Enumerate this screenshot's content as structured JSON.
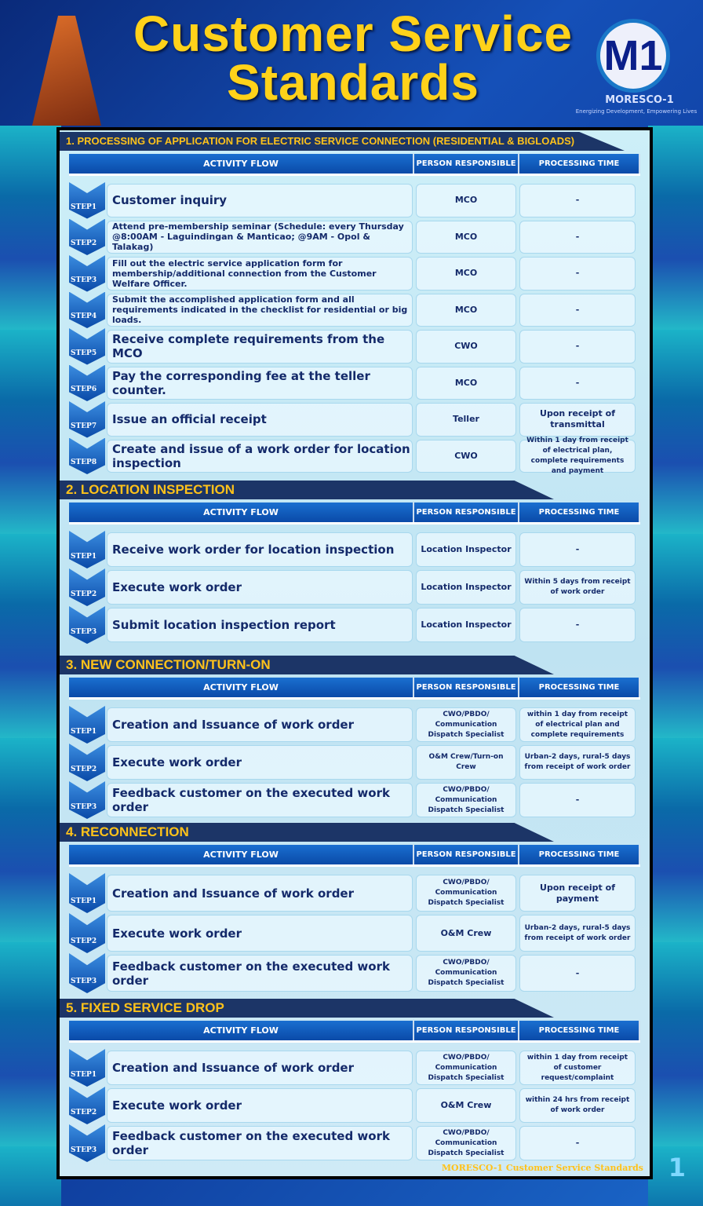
{
  "header": {
    "title": "Customer Service Standards",
    "logo_letters": "M1",
    "brand": "MORESCO-1",
    "tagline": "Energizing Development, Empowering Lives"
  },
  "columns": {
    "activity": "ACTIVITY FLOW",
    "person": "PERSON RESPONSIBLE",
    "time": "PROCESSING TIME"
  },
  "sections": [
    {
      "title": "1. PROCESSING OF APPLICATION FOR ELECTRIC SERVICE CONNECTION (RESIDENTIAL & BIGLOADS)",
      "steps": [
        {
          "step": "STEP1",
          "activity": "Customer inquiry",
          "person": "MCO",
          "time": "-"
        },
        {
          "step": "STEP2",
          "activity": "Attend pre-membership seminar (Schedule: every Thursday @8:00AM - Laguindingan & Manticao; @9AM - Opol & Talakag)",
          "person": "MCO",
          "time": "-"
        },
        {
          "step": "STEP3",
          "activity": "Fill out the electric service application form for membership/additional connection from the Customer Welfare Officer.",
          "person": "MCO",
          "time": "-"
        },
        {
          "step": "STEP4",
          "activity": "Submit the accomplished application form and all requirements indicated in the checklist for residential or big loads.",
          "person": "MCO",
          "time": "-"
        },
        {
          "step": "STEP5",
          "activity": "Receive complete requirements from the MCO",
          "person": "CWO",
          "time": "-"
        },
        {
          "step": "STEP6",
          "activity": "Pay the corresponding fee at the teller counter.",
          "person": "MCO",
          "time": "-"
        },
        {
          "step": "STEP7",
          "activity": "Issue an official receipt",
          "person": "Teller",
          "time": "Upon receipt of transmittal"
        },
        {
          "step": "STEP8",
          "activity": "Create and issue of a work order for location inspection",
          "person": "CWO",
          "time": "Within 1 day from receipt of electrical plan, complete requirements and payment"
        }
      ]
    },
    {
      "title": "2. LOCATION INSPECTION",
      "steps": [
        {
          "step": "STEP1",
          "activity": "Receive work order for location inspection",
          "person": "Location Inspector",
          "time": "-"
        },
        {
          "step": "STEP2",
          "activity": "Execute work order",
          "person": "Location Inspector",
          "time": "Within 5 days from receipt of work order"
        },
        {
          "step": "STEP3",
          "activity": "Submit location inspection report",
          "person": "Location Inspector",
          "time": "-"
        }
      ]
    },
    {
      "title": "3. NEW CONNECTION/TURN-ON",
      "steps": [
        {
          "step": "STEP1",
          "activity": "Creation and Issuance of work order",
          "person": "CWO/PBDO/ Communication Dispatch Specialist",
          "time": "within 1 day from receipt of electrical plan and complete requirements"
        },
        {
          "step": "STEP2",
          "activity": "Execute work order",
          "person": "O&M Crew/Turn-on Crew",
          "time": "Urban-2 days, rural-5 days from receipt of work order"
        },
        {
          "step": "STEP3",
          "activity": "Feedback customer on the executed work order",
          "person": "CWO/PBDO/ Communication Dispatch Specialist",
          "time": "-"
        }
      ]
    },
    {
      "title": "4. RECONNECTION",
      "steps": [
        {
          "step": "STEP1",
          "activity": "Creation and Issuance of work order",
          "person": "CWO/PBDO/ Communication Dispatch Specialist",
          "time": "Upon receipt of payment"
        },
        {
          "step": "STEP2",
          "activity": "Execute work order",
          "person": "O&M Crew",
          "time": "Urban-2 days, rural-5 days from receipt of work order"
        },
        {
          "step": "STEP3",
          "activity": "Feedback customer on the executed work order",
          "person": "CWO/PBDO/ Communication Dispatch Specialist",
          "time": "-"
        }
      ]
    },
    {
      "title": "5. FIXED SERVICE DROP",
      "steps": [
        {
          "step": "STEP1",
          "activity": "Creation and Issuance of work order",
          "person": "CWO/PBDO/ Communication Dispatch Specialist",
          "time": "within 1 day from receipt of customer request/complaint"
        },
        {
          "step": "STEP2",
          "activity": "Execute work order",
          "person": "O&M Crew",
          "time": "within 24 hrs from receipt of work order"
        },
        {
          "step": "STEP3",
          "activity": "Feedback customer on the executed work order",
          "person": "CWO/PBDO/ Communication Dispatch Specialist",
          "time": "-"
        }
      ]
    }
  ],
  "footer": "MORESCO-1 Customer Service Standards",
  "page_number": "1"
}
